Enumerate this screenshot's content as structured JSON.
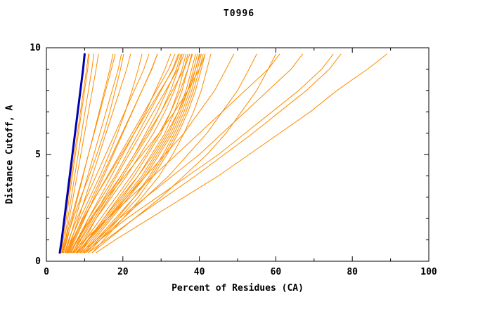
{
  "chart_data": {
    "type": "line",
    "title": "T0996",
    "xlabel": "Percent of Residues (CA)",
    "ylabel": "Distance Cutoff, A",
    "xlim": [
      0,
      100
    ],
    "ylim": [
      0,
      10
    ],
    "x_major_ticks": [
      0,
      20,
      40,
      60,
      80,
      100
    ],
    "x_minor_step": 10,
    "y_major_ticks": [
      0,
      5,
      10
    ],
    "y_minor_step": 1,
    "grid": false,
    "legend": "none",
    "colors": {
      "models": "#ff8c00",
      "best_model": "#0000b0",
      "axis": "#000000"
    },
    "y_samples": [
      0.4,
      1,
      2,
      3,
      4,
      5,
      6,
      7,
      8,
      9,
      9.7
    ],
    "best_model": [
      3.5,
      4.0,
      4.7,
      5.4,
      6.1,
      6.8,
      7.5,
      8.2,
      8.9,
      9.6,
      10.0
    ],
    "models": [
      [
        3.8,
        4.4,
        5.2,
        6.0,
        6.8,
        7.6,
        8.4,
        9.2,
        10.0,
        10.8,
        11.2
      ],
      [
        4.0,
        4.7,
        5.6,
        6.5,
        7.4,
        8.3,
        9.2,
        10.1,
        11.0,
        11.9,
        12.4
      ],
      [
        3.6,
        4.1,
        4.9,
        5.7,
        6.5,
        7.3,
        8.1,
        8.9,
        9.7,
        10.5,
        11.0
      ],
      [
        4.2,
        5.0,
        6.0,
        7.0,
        8.0,
        9.0,
        10.0,
        11.0,
        12.0,
        13.0,
        13.6
      ],
      [
        4.5,
        5.4,
        6.8,
        8.2,
        9.6,
        11.0,
        12.4,
        13.8,
        15.2,
        16.6,
        17.4
      ],
      [
        5.0,
        6.0,
        7.6,
        9.2,
        10.8,
        12.4,
        14.0,
        15.6,
        17.2,
        18.8,
        19.6
      ],
      [
        4.0,
        5.0,
        6.5,
        8.0,
        9.5,
        11.0,
        12.5,
        14.0,
        15.5,
        17.0,
        18.0
      ],
      [
        5.5,
        6.6,
        8.4,
        10.2,
        12.0,
        13.8,
        15.6,
        17.4,
        19.2,
        21.0,
        22.0
      ],
      [
        4.3,
        5.2,
        7.0,
        9.0,
        11.2,
        13.2,
        15.0,
        16.6,
        18.0,
        19.4,
        20.2
      ],
      [
        5.2,
        6.4,
        8.8,
        11.4,
        14.0,
        16.4,
        18.6,
        20.6,
        22.4,
        24.0,
        25.0
      ],
      [
        6.0,
        7.5,
        10.0,
        12.5,
        15.0,
        17.5,
        20.0,
        22.5,
        25.0,
        27.5,
        29.0
      ],
      [
        7.0,
        8.5,
        11.0,
        14.0,
        17.0,
        20.0,
        23.0,
        26.0,
        28.5,
        31.0,
        32.5
      ],
      [
        6.5,
        8.0,
        11.0,
        14.5,
        18.0,
        21.0,
        24.0,
        27.0,
        30.0,
        33.0,
        34.5
      ],
      [
        8.0,
        10.0,
        13.0,
        16.5,
        20.0,
        23.5,
        27.0,
        30.0,
        32.5,
        34.5,
        35.5
      ],
      [
        7.5,
        9.5,
        13.0,
        17.0,
        21.0,
        24.5,
        28.0,
        31.0,
        33.5,
        35.5,
        36.5
      ],
      [
        9.0,
        11.0,
        15.0,
        19.0,
        23.0,
        26.5,
        30.0,
        32.5,
        34.5,
        36.0,
        37.0
      ],
      [
        8.5,
        11.0,
        15.5,
        20.0,
        24.0,
        27.5,
        31.0,
        33.5,
        35.5,
        37.0,
        38.0
      ],
      [
        10.0,
        12.5,
        17.0,
        21.5,
        26.0,
        29.5,
        33.0,
        35.5,
        37.5,
        39.0,
        40.0
      ],
      [
        9.5,
        12.0,
        16.5,
        21.0,
        25.5,
        29.0,
        32.5,
        35.0,
        37.0,
        38.5,
        39.5
      ],
      [
        11.0,
        14.0,
        19.0,
        24.0,
        28.0,
        31.5,
        34.5,
        37.0,
        39.0,
        40.5,
        41.5
      ],
      [
        10.5,
        13.5,
        18.5,
        23.0,
        27.5,
        31.0,
        34.0,
        36.5,
        38.5,
        40.0,
        41.0
      ],
      [
        12.0,
        15.0,
        20.0,
        25.0,
        29.5,
        33.0,
        36.0,
        38.5,
        40.5,
        42.0,
        43.0
      ],
      [
        5.8,
        7.2,
        9.8,
        12.8,
        16.0,
        19.2,
        22.4,
        25.6,
        28.8,
        32.0,
        33.6
      ],
      [
        6.2,
        8.0,
        11.5,
        15.5,
        19.5,
        23.0,
        26.0,
        29.0,
        31.5,
        34.0,
        35.2
      ],
      [
        7.2,
        9.0,
        12.5,
        16.0,
        19.5,
        23.0,
        26.5,
        30.0,
        33.0,
        36.0,
        37.5
      ],
      [
        8.8,
        11.5,
        16.0,
        20.5,
        25.0,
        28.5,
        32.0,
        34.5,
        36.5,
        38.0,
        39.0
      ],
      [
        9.8,
        13.0,
        18.0,
        23.0,
        27.0,
        30.5,
        33.5,
        36.0,
        38.0,
        39.5,
        40.5
      ],
      [
        6.8,
        8.8,
        12.0,
        15.2,
        18.4,
        21.6,
        24.8,
        28.0,
        31.2,
        34.4,
        36.0
      ],
      [
        7.8,
        10.2,
        14.2,
        18.2,
        22.2,
        26.0,
        29.5,
        32.5,
        35.0,
        37.0,
        38.2
      ],
      [
        8.2,
        10.8,
        15.0,
        19.5,
        24.0,
        28.0,
        31.5,
        34.5,
        37.0,
        39.0,
        40.2
      ],
      [
        8.0,
        11.0,
        16.0,
        21.0,
        26.0,
        31.0,
        36.0,
        40.0,
        44.0,
        47.0,
        49.0
      ],
      [
        10.0,
        14.0,
        20.0,
        26.0,
        32.0,
        37.0,
        42.0,
        46.0,
        50.0,
        53.0,
        55.0
      ],
      [
        12.0,
        16.0,
        23.0,
        30.0,
        36.0,
        42.0,
        47.0,
        51.0,
        55.0,
        58.0,
        60.0
      ],
      [
        9.0,
        13.0,
        19.0,
        26.0,
        33.0,
        40.0,
        46.0,
        52.0,
        58.0,
        64.0,
        67.0
      ],
      [
        7.0,
        10.0,
        16.0,
        22.0,
        28.0,
        34.0,
        40.0,
        46.0,
        52.0,
        58.0,
        61.0
      ],
      [
        10.0,
        14.0,
        21.0,
        29.0,
        37.0,
        45.0,
        52.0,
        59.0,
        66.0,
        72.0,
        75.0
      ],
      [
        13.0,
        18.0,
        27.0,
        36.0,
        45.0,
        53.0,
        61.0,
        69.0,
        76.0,
        84.0,
        89.0
      ],
      [
        11.0,
        15.5,
        23.0,
        31.0,
        39.0,
        46.5,
        54.0,
        61.0,
        68.0,
        74.0,
        77.0
      ],
      [
        5.6,
        7.0,
        9.4,
        12.0,
        14.6,
        17.2,
        19.8,
        22.4,
        25.0,
        27.6,
        29.0
      ],
      [
        6.4,
        8.2,
        11.8,
        16.0,
        20.5,
        25.0,
        29.5,
        33.5,
        37.0,
        40.0,
        41.5
      ],
      [
        4.8,
        5.8,
        8.0,
        10.5,
        13.0,
        15.5,
        18.0,
        20.5,
        23.0,
        25.5,
        26.8
      ],
      [
        5.4,
        6.8,
        9.6,
        12.8,
        16.2,
        19.6,
        23.0,
        26.4,
        29.8,
        33.2,
        34.8
      ]
    ]
  }
}
